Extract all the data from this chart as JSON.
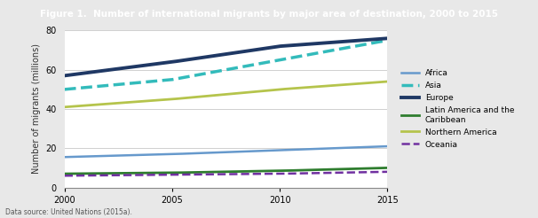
{
  "title": "Figure 1.  Number of international migrants by major area of destination, 2000 to 2015",
  "ylabel": "Number of migrants (millions)",
  "datasource": "Data source: United Nations (2015a).",
  "years": [
    2000,
    2005,
    2010,
    2015
  ],
  "series": {
    "Africa": {
      "values": [
        15.5,
        17,
        19,
        21
      ],
      "color": "#6699cc",
      "linestyle": "solid",
      "linewidth": 1.8
    },
    "Asia": {
      "values": [
        50,
        55,
        65,
        75
      ],
      "color": "#33bbbb",
      "linestyle": "dashed",
      "linewidth": 2.5
    },
    "Europe": {
      "values": [
        57,
        64,
        72,
        76
      ],
      "color": "#1f3864",
      "linestyle": "solid",
      "linewidth": 2.8
    },
    "Latin America and the\nCaribbean": {
      "values": [
        7,
        7.5,
        8.5,
        10
      ],
      "color": "#2e7d2e",
      "linestyle": "solid",
      "linewidth": 2.0
    },
    "Northern America": {
      "values": [
        41,
        45,
        50,
        54
      ],
      "color": "#b5c44c",
      "linestyle": "solid",
      "linewidth": 2.0
    },
    "Oceania": {
      "values": [
        6,
        6.5,
        7,
        8
      ],
      "color": "#7030a0",
      "linestyle": "dashed",
      "linewidth": 1.8
    }
  },
  "ylim": [
    0,
    80
  ],
  "yticks": [
    0,
    20,
    40,
    60,
    80
  ],
  "xticks": [
    2000,
    2005,
    2010,
    2015
  ],
  "title_bg_color": "#1f3d8a",
  "title_text_color": "#ffffff",
  "outer_bg_color": "#e8e8e8",
  "plot_bg_color": "#ffffff",
  "grid_color": "#d0d0d0",
  "legend_labels": [
    "Africa",
    "Asia",
    "Europe",
    "Latin America and the\nCaribbean",
    "Northern America",
    "Oceania"
  ]
}
